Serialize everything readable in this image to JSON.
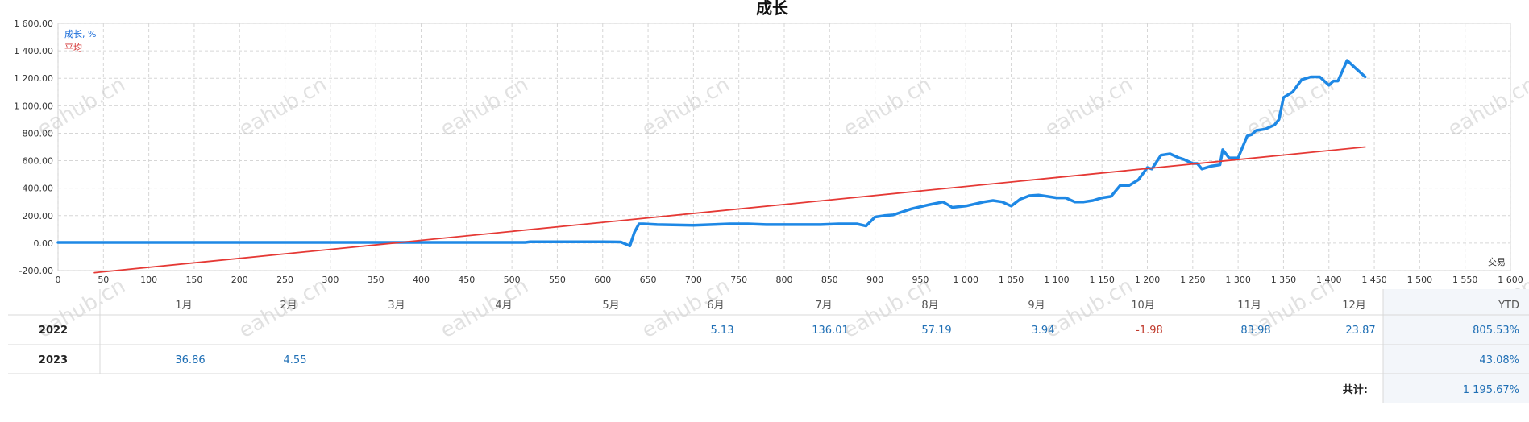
{
  "chart_data": {
    "type": "line",
    "title": "成长",
    "xlabel": "交易",
    "ylabel": "",
    "xlim": [
      0,
      1600
    ],
    "ylim": [
      -200,
      1600
    ],
    "xticks": [
      0,
      50,
      100,
      150,
      200,
      250,
      300,
      350,
      400,
      450,
      500,
      550,
      600,
      650,
      700,
      750,
      800,
      850,
      900,
      950,
      1000,
      1050,
      1100,
      1150,
      1200,
      1250,
      1300,
      1350,
      1400,
      1450,
      1500,
      1550,
      1600
    ],
    "xtick_labels": [
      "0",
      "50",
      "100",
      "150",
      "200",
      "250",
      "300",
      "350",
      "400",
      "450",
      "500",
      "550",
      "600",
      "650",
      "700",
      "750",
      "800",
      "850",
      "900",
      "950",
      "1 000",
      "1 050",
      "1 100",
      "1 150",
      "1 200",
      "1 250",
      "1 300",
      "1 350",
      "1 400",
      "1 450",
      "1 500",
      "1 550",
      "1 600"
    ],
    "yticks": [
      -200,
      0,
      200,
      400,
      600,
      800,
      1000,
      1200,
      1400,
      1600
    ],
    "ytick_labels": [
      "-200.00",
      "0.00",
      "200.00",
      "400.00",
      "600.00",
      "800.00",
      "1 000.00",
      "1 200.00",
      "1 400.00",
      "1 600.00"
    ],
    "grid": true,
    "legend_position": "top-left",
    "series": [
      {
        "name": "成长, %",
        "color": "#1e88e5",
        "x": [
          0,
          100,
          200,
          300,
          400,
          450,
          500,
          515,
          520,
          600,
          620,
          630,
          635,
          640,
          645,
          660,
          700,
          720,
          740,
          760,
          780,
          800,
          820,
          840,
          860,
          880,
          890,
          900,
          910,
          920,
          940,
          960,
          975,
          985,
          1000,
          1020,
          1030,
          1040,
          1050,
          1060,
          1070,
          1080,
          1090,
          1100,
          1110,
          1120,
          1130,
          1140,
          1150,
          1160,
          1170,
          1180,
          1190,
          1200,
          1205,
          1215,
          1225,
          1235,
          1240,
          1250,
          1255,
          1260,
          1270,
          1280,
          1283,
          1290,
          1300,
          1310,
          1315,
          1320,
          1330,
          1340,
          1345,
          1350,
          1360,
          1370,
          1380,
          1390,
          1400,
          1405,
          1410,
          1420,
          1430,
          1440
        ],
        "values": [
          5,
          5,
          5,
          5,
          5,
          5,
          5,
          5,
          10,
          10,
          8,
          -20,
          80,
          140,
          140,
          135,
          130,
          135,
          140,
          140,
          135,
          135,
          135,
          135,
          140,
          140,
          125,
          190,
          200,
          205,
          250,
          280,
          300,
          260,
          270,
          300,
          310,
          300,
          270,
          320,
          345,
          350,
          340,
          330,
          330,
          300,
          300,
          310,
          330,
          340,
          420,
          420,
          460,
          550,
          540,
          640,
          650,
          620,
          610,
          580,
          580,
          540,
          560,
          570,
          680,
          620,
          620,
          780,
          790,
          820,
          830,
          860,
          900,
          1060,
          1100,
          1190,
          1210,
          1210,
          1150,
          1180,
          1180,
          1330,
          1270,
          1210
        ],
        "labels": [
          {
            "x": 1200,
            "y": 610,
            "text": "1 195.67%"
          }
        ]
      },
      {
        "name": "平均",
        "color": "#e53935",
        "x": [
          40,
          1440
        ],
        "values": [
          -215,
          700
        ]
      }
    ]
  },
  "watermarks": [
    {
      "text": "eahub.cn",
      "row": 1,
      "col": 0
    },
    {
      "text": "eahub.cn",
      "row": 1,
      "col": 1
    },
    {
      "text": "eahub.cn",
      "row": 1,
      "col": 2
    },
    {
      "text": "eahub.cn",
      "row": 1,
      "col": 3
    },
    {
      "text": "eahub.cn",
      "row": 1,
      "col": 4
    },
    {
      "text": "eahub.cn",
      "row": 1,
      "col": 5
    },
    {
      "text": "eahub.cn",
      "row": 1,
      "col": 6
    },
    {
      "text": "eahub.cn",
      "row": 1,
      "col": 7
    },
    {
      "text": "eahub.cn",
      "row": 2,
      "col": 0
    },
    {
      "text": "eahub.cn",
      "row": 2,
      "col": 1
    },
    {
      "text": "eahub.cn",
      "row": 2,
      "col": 2
    },
    {
      "text": "eahub.cn",
      "row": 2,
      "col": 3
    },
    {
      "text": "eahub.cn",
      "row": 2,
      "col": 4
    },
    {
      "text": "eahub.cn",
      "row": 2,
      "col": 5
    },
    {
      "text": "eahub.cn",
      "row": 2,
      "col": 6
    },
    {
      "text": "eahub.cn",
      "row": 2,
      "col": 7
    }
  ],
  "table": {
    "months": [
      "1月",
      "2月",
      "3月",
      "4月",
      "5月",
      "6月",
      "7月",
      "8月",
      "9月",
      "10月",
      "11月",
      "12月"
    ],
    "ytd_label": "YTD",
    "rows": [
      {
        "year": "2022",
        "values": [
          "",
          "",
          "",
          "",
          "",
          "5.13",
          "136.01",
          "57.19",
          "3.94",
          "-1.98",
          "83.98",
          "23.87"
        ],
        "ytd": "805.53%"
      },
      {
        "year": "2023",
        "values": [
          "36.86",
          "4.55",
          "",
          "",
          "",
          "",
          "",
          "",
          "",
          "",
          "",
          ""
        ],
        "ytd": "43.08%"
      }
    ],
    "total_label": "共计:",
    "total_value": "1 195.67%"
  }
}
